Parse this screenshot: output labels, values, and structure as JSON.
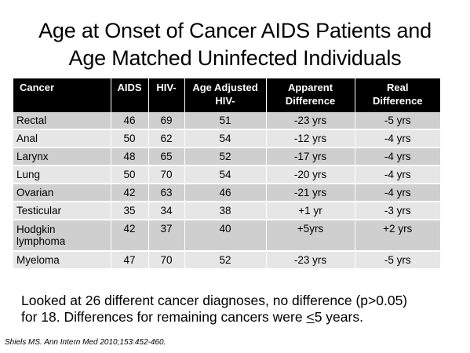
{
  "title_line1": "Age at Onset of Cancer AIDS Patients and",
  "title_line2": "Age Matched Uninfected Individuals",
  "table": {
    "headers": {
      "cancer": "Cancer",
      "aids": "AIDS",
      "hiv_neg": "HIV-",
      "age_adjusted_1": "Age Adjusted",
      "age_adjusted_2": "HIV-",
      "apparent_1": "Apparent",
      "apparent_2": "Difference",
      "real_1": "Real",
      "real_2": "Difference"
    },
    "rows": [
      {
        "cancer": "Rectal",
        "cancer2": "",
        "aids": "46",
        "hiv_neg": "69",
        "age_adjusted": "51",
        "apparent": "-23 yrs",
        "real": "-5 yrs"
      },
      {
        "cancer": "Anal",
        "cancer2": "",
        "aids": "50",
        "hiv_neg": "62",
        "age_adjusted": "54",
        "apparent": "-12 yrs",
        "real": "-4 yrs"
      },
      {
        "cancer": "Larynx",
        "cancer2": "",
        "aids": "48",
        "hiv_neg": "65",
        "age_adjusted": "52",
        "apparent": "-17 yrs",
        "real": "-4 yrs"
      },
      {
        "cancer": "Lung",
        "cancer2": "",
        "aids": "50",
        "hiv_neg": "70",
        "age_adjusted": "54",
        "apparent": "-20 yrs",
        "real": "-4 yrs"
      },
      {
        "cancer": "Ovarian",
        "cancer2": "",
        "aids": "42",
        "hiv_neg": "63",
        "age_adjusted": "46",
        "apparent": "-21 yrs",
        "real": "-4 yrs"
      },
      {
        "cancer": "Testicular",
        "cancer2": "",
        "aids": "35",
        "hiv_neg": "34",
        "age_adjusted": "38",
        "apparent": "+1 yr",
        "real": "-3 yrs"
      },
      {
        "cancer": "Hodgkin",
        "cancer2": "lymphoma",
        "aids": "42",
        "hiv_neg": "37",
        "age_adjusted": "40",
        "apparent": "+5yrs",
        "real": "+2 yrs"
      },
      {
        "cancer": "Myeloma",
        "cancer2": "",
        "aids": "47",
        "hiv_neg": "70",
        "age_adjusted": "52",
        "apparent": "-23 yrs",
        "real": "-5 yrs"
      }
    ]
  },
  "note": {
    "line1": "Looked at 26 different cancer diagnoses, no difference (p>0.05)",
    "line2_pre": "for 18.  Differences for remaining cancers were ",
    "line2_le": "<",
    "line2_post": "5 years."
  },
  "citation": "Shiels MS. Ann Intern Med 2010;153:452-460."
}
